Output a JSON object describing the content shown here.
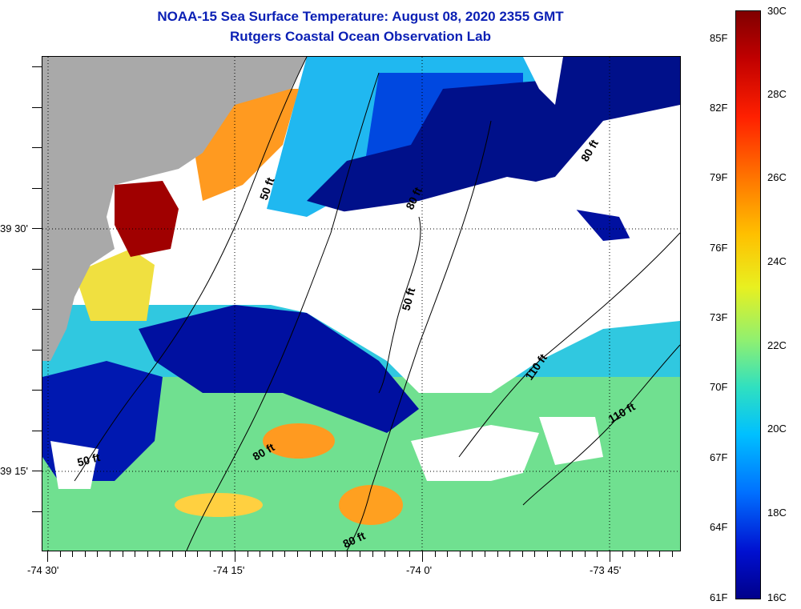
{
  "title": {
    "line1": "NOAA-15 Sea Surface Temperature:  August 08, 2020 2355 GMT",
    "line2": "Rutgers Coastal Ocean Observation Lab"
  },
  "map": {
    "x_axis_labels": [
      "-74 30'",
      "-74 15'",
      "-74 0'",
      "-73 45'"
    ],
    "y_axis_labels": [
      "39 30'",
      "39 15'"
    ],
    "contour_labels": [
      "50 ft",
      "80 ft",
      "80 ft",
      "50 ft",
      "110 ft",
      "110 ft",
      "80 ft",
      "50 ft",
      "80 ft",
      "80 ft"
    ],
    "grid": true,
    "land_color": "#a9a9a9",
    "missing_data_color": "#ffffff"
  },
  "colorbar": {
    "fahrenheit_labels": [
      "85F",
      "82F",
      "79F",
      "76F",
      "73F",
      "70F",
      "67F",
      "64F",
      "61F"
    ],
    "celsius_labels": [
      "30C",
      "28C",
      "26C",
      "24C",
      "22C",
      "20C",
      "18C",
      "16C"
    ],
    "colors": [
      "#800000",
      "#ff2000",
      "#ffc000",
      "#90f070",
      "#00c0ff",
      "#0010d0",
      "#00008a"
    ]
  }
}
